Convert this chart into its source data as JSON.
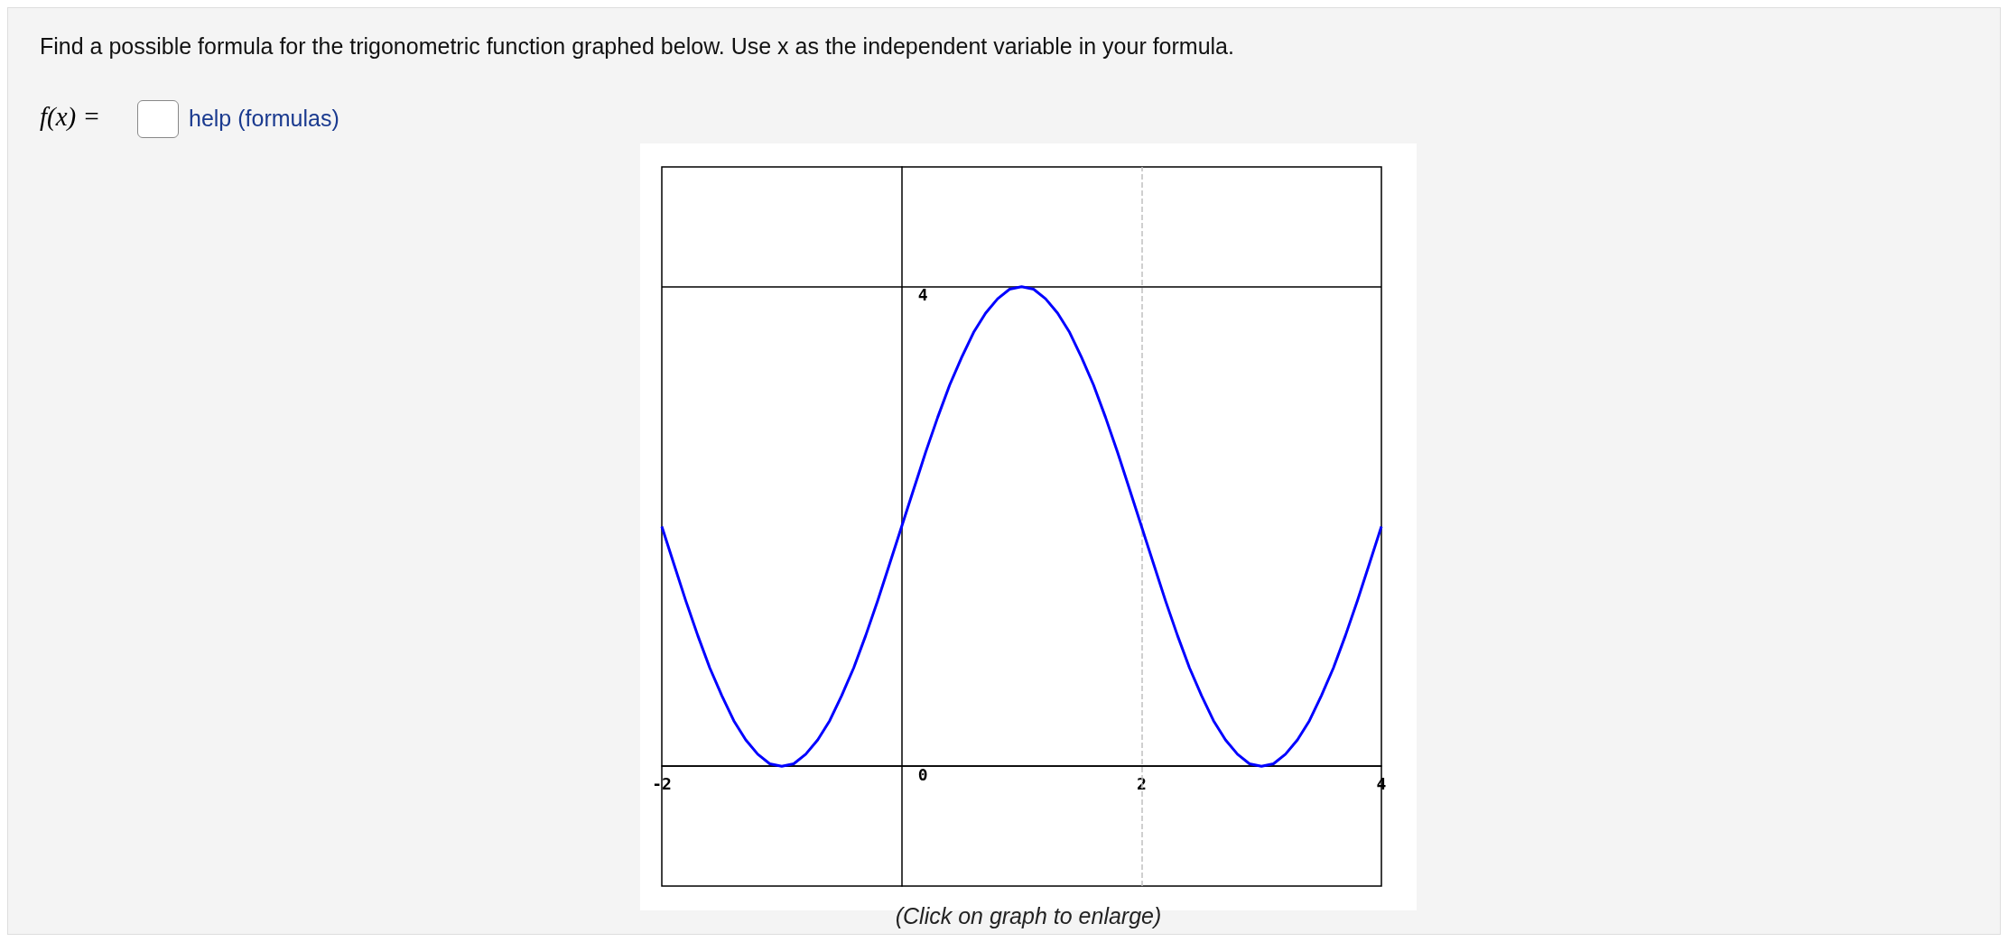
{
  "chart_data": {
    "type": "line",
    "title": "Find a possible formula for the trigonometric function graphed below. Use x as the independent variable in your formula.",
    "annotations": [
      "f(x) =",
      "help (formulas)",
      "(Click on graph to enlarge)"
    ],
    "x": [
      -2,
      -1.9,
      -1.8,
      -1.7,
      -1.6,
      -1.5,
      -1.4,
      -1.3,
      -1.2,
      -1.1,
      -1,
      -0.9,
      -0.8,
      -0.7,
      -0.6,
      -0.5,
      -0.4,
      -0.3,
      -0.2,
      -0.1,
      0,
      0.1,
      0.2,
      0.3,
      0.4,
      0.5,
      0.6,
      0.7,
      0.8,
      0.9,
      1,
      1.1,
      1.2,
      1.3,
      1.4,
      1.5,
      1.6,
      1.7,
      1.8,
      1.9,
      2,
      2.1,
      2.2,
      2.3,
      2.4,
      2.5,
      2.6,
      2.7,
      2.8,
      2.9,
      3,
      3.1,
      3.2,
      3.3,
      3.4,
      3.5,
      3.6,
      3.7,
      3.8,
      3.9,
      4
    ],
    "series": [
      {
        "color": "#0000ff",
        "values": [
          2,
          1.69,
          1.38,
          1.09,
          0.82,
          0.59,
          0.38,
          0.22,
          0.1,
          0.02,
          0,
          0.02,
          0.1,
          0.22,
          0.38,
          0.59,
          0.82,
          1.09,
          1.38,
          1.69,
          2,
          2.31,
          2.62,
          2.91,
          3.18,
          3.41,
          3.62,
          3.78,
          3.9,
          3.98,
          4,
          3.98,
          3.9,
          3.78,
          3.62,
          3.41,
          3.18,
          2.91,
          2.62,
          2.31,
          2,
          1.69,
          1.38,
          1.09,
          0.82,
          0.59,
          0.38,
          0.22,
          0.1,
          0.02,
          0,
          0.02,
          0.1,
          0.22,
          0.38,
          0.59,
          0.82,
          1.09,
          1.38,
          1.69,
          2
        ]
      }
    ],
    "xlim": [
      -2,
      4
    ],
    "xticks": [
      -2,
      2,
      4
    ],
    "ylim": [
      -1,
      5
    ],
    "yticks": [
      0,
      4
    ],
    "grid": "y",
    "ref_lines": [
      {
        "axis": "x",
        "value": 2,
        "color": "#c0c0c0",
        "line_style": "dashed"
      }
    ],
    "line_style": "solid"
  }
}
